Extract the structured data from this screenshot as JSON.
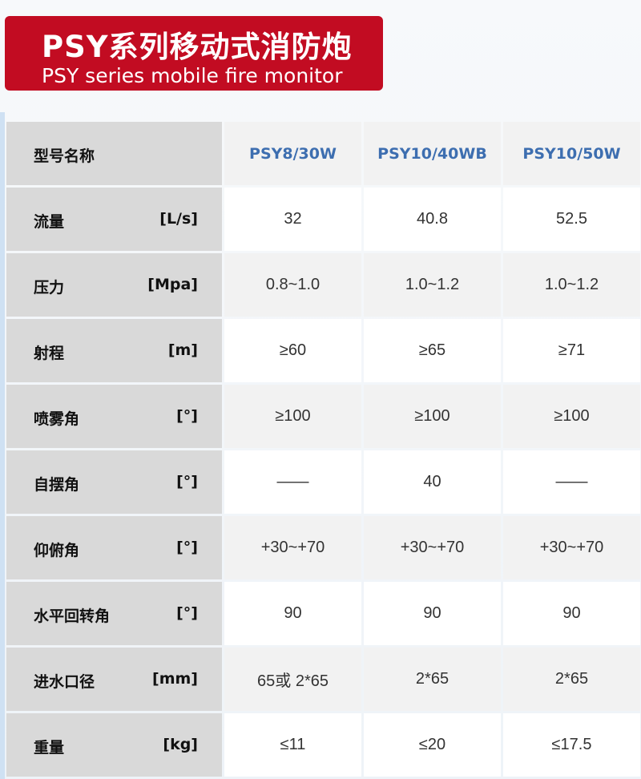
{
  "banner": {
    "title_cn": "PSY系列移动式消防炮",
    "title_en": "PSY series mobile fire monitor",
    "color": "#c20c22"
  },
  "table": {
    "header": {
      "label": "型号名称",
      "models": [
        "PSY8/30W",
        "PSY10/40WB",
        "PSY10/50W"
      ],
      "model_color": "#3d6eb0"
    },
    "rows": [
      {
        "name": "流量",
        "unit": "[L/s]",
        "values": [
          "32",
          "40.8",
          "52.5"
        ]
      },
      {
        "name": "压力",
        "unit": "[Mpa]",
        "values": [
          "0.8~1.0",
          "1.0~1.2",
          "1.0~1.2"
        ]
      },
      {
        "name": "射程",
        "unit": "[m]",
        "values": [
          "≥60",
          "≥65",
          "≥71"
        ]
      },
      {
        "name": "喷雾角",
        "unit": "[°]",
        "values": [
          "≥100",
          "≥100",
          "≥100"
        ]
      },
      {
        "name": "自摆角",
        "unit": "[°]",
        "values": [
          "——",
          "40",
          "——"
        ]
      },
      {
        "name": "仰俯角",
        "unit": "[°]",
        "values": [
          "+30~+70",
          "+30~+70",
          "+30~+70"
        ]
      },
      {
        "name": "水平回转角",
        "unit": "[°]",
        "values": [
          "90",
          "90",
          "90"
        ]
      },
      {
        "name": "进水口径",
        "unit": "[mm]",
        "values": [
          "65或 2*65",
          "2*65",
          "2*65"
        ]
      },
      {
        "name": "重量",
        "unit": "[kg]",
        "values": [
          "≤11",
          "≤20",
          "≤17.5"
        ]
      }
    ]
  }
}
